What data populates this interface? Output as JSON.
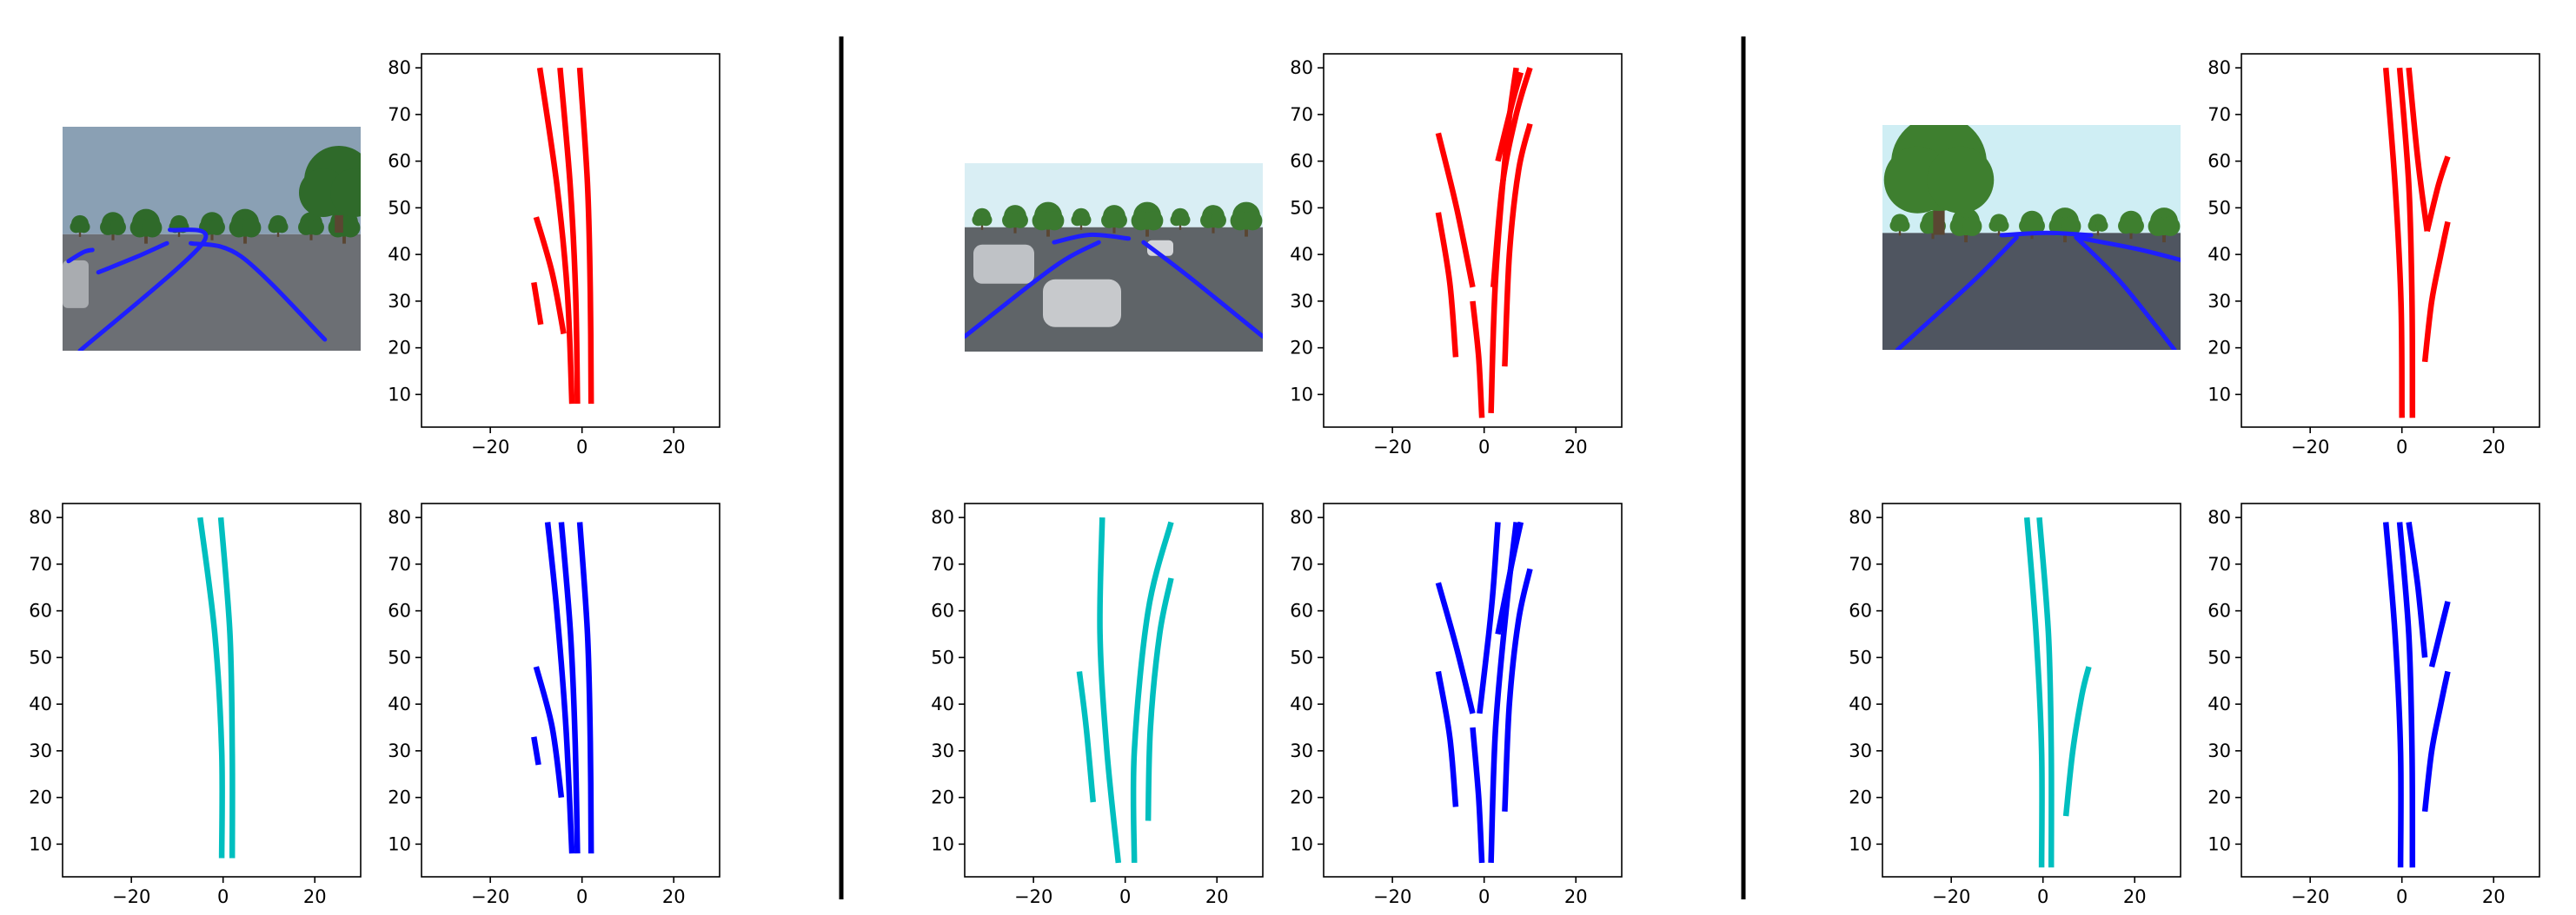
{
  "colors": {
    "red": "#ff0000",
    "cyan": "#00bfbf",
    "blue": "#0000ff",
    "axis": "#000000"
  },
  "icons": [
    "camera-photo-icon"
  ],
  "axes": {
    "xlim": [
      -35,
      30
    ],
    "ylim": [
      3,
      83
    ],
    "xticks": [
      -20,
      0,
      20
    ],
    "yticks": [
      10,
      20,
      30,
      40,
      50,
      60,
      70,
      80
    ]
  },
  "groups": [
    {
      "name": "scene-1",
      "photo": {
        "sky": "#8aa0b4",
        "ground": "#6c6f74",
        "trees": "#2f6a2a",
        "lane_overlay": "#1e1eff"
      },
      "charts": [
        {
          "role": "top-right",
          "type": "line",
          "color": "red",
          "series": [
            {
              "points": [
                [
                  -9.2,
                  80
                ],
                [
                  -5.5,
                  55
                ],
                [
                  -3.2,
                  32
                ],
                [
                  -2.2,
                  8
                ]
              ]
            },
            {
              "points": [
                [
                  -4.8,
                  80
                ],
                [
                  -2.6,
                  55
                ],
                [
                  -1.4,
                  32
                ],
                [
                  -1.0,
                  8
                ]
              ]
            },
            {
              "points": [
                [
                  -0.5,
                  80
                ],
                [
                  1.2,
                  55
                ],
                [
                  1.8,
                  32
                ],
                [
                  2.0,
                  8
                ]
              ]
            },
            {
              "points": [
                [
                  -10.0,
                  48
                ],
                [
                  -6.5,
                  36
                ],
                [
                  -4.0,
                  23
                ]
              ]
            },
            {
              "points": [
                [
                  -10.5,
                  34
                ],
                [
                  -9.0,
                  25
                ]
              ]
            }
          ]
        },
        {
          "role": "bottom-left",
          "type": "line",
          "color": "cyan",
          "series": [
            {
              "points": [
                [
                  -5.0,
                  80
                ],
                [
                  -1.8,
                  55
                ],
                [
                  -0.3,
                  30
                ],
                [
                  -0.3,
                  7
                ]
              ]
            },
            {
              "points": [
                [
                  -0.5,
                  80
                ],
                [
                  1.5,
                  55
                ],
                [
                  2.0,
                  30
                ],
                [
                  2.0,
                  7
                ]
              ]
            }
          ]
        },
        {
          "role": "bottom-right",
          "type": "line",
          "color": "blue",
          "series": [
            {
              "points": [
                [
                  -7.5,
                  79
                ],
                [
                  -5.5,
                  60
                ],
                [
                  -3.5,
                  35
                ],
                [
                  -2.2,
                  8
                ]
              ]
            },
            {
              "points": [
                [
                  -4.5,
                  79
                ],
                [
                  -2.5,
                  55
                ],
                [
                  -1.5,
                  32
                ],
                [
                  -1.0,
                  8
                ]
              ]
            },
            {
              "points": [
                [
                  -0.5,
                  79
                ],
                [
                  1.2,
                  55
                ],
                [
                  1.8,
                  32
                ],
                [
                  2.0,
                  8
                ]
              ]
            },
            {
              "points": [
                [
                  -10.0,
                  48
                ],
                [
                  -6.5,
                  35
                ],
                [
                  -4.5,
                  20
                ]
              ]
            },
            {
              "points": [
                [
                  -10.5,
                  33
                ],
                [
                  -9.5,
                  27
                ]
              ]
            }
          ]
        }
      ]
    },
    {
      "name": "scene-2",
      "photo": {
        "sky": "#d9eef4",
        "ground": "#5f6468",
        "trees": "#3b7a30",
        "lane_overlay": "#1e1eff"
      },
      "charts": [
        {
          "role": "top-right",
          "type": "line",
          "color": "red",
          "series": [
            {
              "points": [
                [
                  -10,
                  66
                ],
                [
                  -6,
                  50
                ],
                [
                  -2.5,
                  33
                ]
              ]
            },
            {
              "points": [
                [
                  -10,
                  49
                ],
                [
                  -7.5,
                  34
                ],
                [
                  -6.2,
                  18
                ]
              ]
            },
            {
              "points": [
                [
                  -2.5,
                  30
                ],
                [
                  -1.2,
                  18
                ],
                [
                  -0.5,
                  5
                ]
              ]
            },
            {
              "points": [
                [
                  2,
                  33
                ],
                [
                  4,
                  55
                ],
                [
                  7,
                  70
                ],
                [
                  10,
                  80
                ]
              ]
            },
            {
              "points": [
                [
                  1.5,
                  6
                ],
                [
                  2.5,
                  35
                ],
                [
                  5,
                  65
                ],
                [
                  7,
                  80
                ]
              ]
            },
            {
              "points": [
                [
                  4.5,
                  16
                ],
                [
                  5.5,
                  40
                ],
                [
                  7.5,
                  58
                ],
                [
                  10,
                  68
                ]
              ]
            },
            {
              "points": [
                [
                  3,
                  60
                ],
                [
                  6,
                  72
                ],
                [
                  8,
                  79
                ]
              ]
            }
          ]
        },
        {
          "role": "bottom-left",
          "type": "line",
          "color": "cyan",
          "series": [
            {
              "points": [
                [
                  -5,
                  80
                ],
                [
                  -5.5,
                  55
                ],
                [
                  -4,
                  30
                ],
                [
                  -1.5,
                  6
                ]
              ]
            },
            {
              "points": [
                [
                  -10,
                  47
                ],
                [
                  -8.5,
                  35
                ],
                [
                  -7,
                  19
                ]
              ]
            },
            {
              "points": [
                [
                  2,
                  6
                ],
                [
                  2,
                  30
                ],
                [
                  5,
                  60
                ],
                [
                  10,
                  79
                ]
              ]
            },
            {
              "points": [
                [
                  5,
                  15
                ],
                [
                  5.5,
                  35
                ],
                [
                  7.5,
                  55
                ],
                [
                  10,
                  67
                ]
              ]
            }
          ]
        },
        {
          "role": "bottom-right",
          "type": "line",
          "color": "blue",
          "series": [
            {
              "points": [
                [
                  -10,
                  66
                ],
                [
                  -6,
                  52
                ],
                [
                  -2.5,
                  38
                ]
              ]
            },
            {
              "points": [
                [
                  -10,
                  47
                ],
                [
                  -7.5,
                  33
                ],
                [
                  -6.2,
                  18
                ]
              ]
            },
            {
              "points": [
                [
                  -2.5,
                  35
                ],
                [
                  -1.2,
                  20
                ],
                [
                  -0.5,
                  6
                ]
              ]
            },
            {
              "points": [
                [
                  -1,
                  38
                ],
                [
                  1,
                  55
                ],
                [
                  2,
                  65
                ],
                [
                  3,
                  79
                ]
              ]
            },
            {
              "points": [
                [
                  1.5,
                  6
                ],
                [
                  2.5,
                  35
                ],
                [
                  5,
                  62
                ],
                [
                  7,
                  79
                ]
              ]
            },
            {
              "points": [
                [
                  4.5,
                  17
                ],
                [
                  5.5,
                  40
                ],
                [
                  7.5,
                  58
                ],
                [
                  10,
                  69
                ]
              ]
            },
            {
              "points": [
                [
                  3,
                  55
                ],
                [
                  6,
                  70
                ],
                [
                  8,
                  79
                ]
              ]
            }
          ]
        }
      ]
    },
    {
      "name": "scene-3",
      "photo": {
        "sky": "#cfeef4",
        "ground": "#4f5560",
        "trees": "#3e7f2f",
        "lane_overlay": "#1e1eff"
      },
      "charts": [
        {
          "role": "top-right",
          "type": "line",
          "color": "red",
          "series": [
            {
              "points": [
                [
                  -3.5,
                  80
                ],
                [
                  -1.5,
                  55
                ],
                [
                  -0.2,
                  30
                ],
                [
                  0,
                  5
                ]
              ]
            },
            {
              "points": [
                [
                  -0.5,
                  80
                ],
                [
                  1.5,
                  55
                ],
                [
                  2.2,
                  30
                ],
                [
                  2.3,
                  5
                ]
              ]
            },
            {
              "points": [
                [
                  1.5,
                  80
                ],
                [
                  3.5,
                  60
                ],
                [
                  5.5,
                  45
                ]
              ]
            },
            {
              "points": [
                [
                  5.5,
                  45
                ],
                [
                  8,
                  55
                ],
                [
                  10,
                  61
                ]
              ]
            },
            {
              "points": [
                [
                  5,
                  17
                ],
                [
                  6.5,
                  30
                ],
                [
                  8.5,
                  40
                ],
                [
                  10,
                  47
                ]
              ]
            }
          ]
        },
        {
          "role": "bottom-left",
          "type": "line",
          "color": "cyan",
          "series": [
            {
              "points": [
                [
                  -3.5,
                  80
                ],
                [
                  -1.5,
                  55
                ],
                [
                  -0.3,
                  30
                ],
                [
                  -0.3,
                  5
                ]
              ]
            },
            {
              "points": [
                [
                  -0.8,
                  80
                ],
                [
                  1.2,
                  55
                ],
                [
                  1.8,
                  30
                ],
                [
                  1.8,
                  5
                ]
              ]
            },
            {
              "points": [
                [
                  5,
                  16
                ],
                [
                  6.5,
                  30
                ],
                [
                  8.5,
                  42
                ],
                [
                  10,
                  48
                ]
              ]
            }
          ]
        },
        {
          "role": "bottom-right",
          "type": "line",
          "color": "blue",
          "series": [
            {
              "points": [
                [
                  -3.5,
                  79
                ],
                [
                  -1.5,
                  55
                ],
                [
                  -0.3,
                  30
                ],
                [
                  -0.3,
                  5
                ]
              ]
            },
            {
              "points": [
                [
                  -0.5,
                  79
                ],
                [
                  1.5,
                  55
                ],
                [
                  2.2,
                  30
                ],
                [
                  2.3,
                  5
                ]
              ]
            },
            {
              "points": [
                [
                  1.5,
                  79
                ],
                [
                  3.5,
                  65
                ],
                [
                  5,
                  50
                ]
              ]
            },
            {
              "points": [
                [
                  6.5,
                  48
                ],
                [
                  8.5,
                  56
                ],
                [
                  10,
                  62
                ]
              ]
            },
            {
              "points": [
                [
                  5,
                  17
                ],
                [
                  6.5,
                  30
                ],
                [
                  8.5,
                  40
                ],
                [
                  10,
                  47
                ]
              ]
            }
          ]
        }
      ]
    }
  ]
}
